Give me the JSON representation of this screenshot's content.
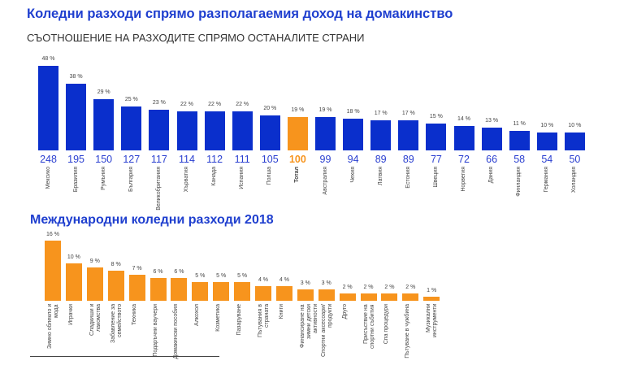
{
  "title": "Коледни разходи спрямо разполагаемия доход на домакинство",
  "subtitle": "СЪОТНОШЕНИЕ НА РАЗХОДИТЕ СПРЯМО ОСТАНАЛИТЕ СТРАНИ",
  "title2": "Международни коледни разходи 2018",
  "colors": {
    "blue": "#0a2fcc",
    "orange": "#f7941d",
    "title": "#1f3fcf"
  },
  "chart_data": [
    {
      "type": "bar",
      "title": "Коледни разходи спрямо разполагаемия доход на домакинство",
      "unit": "%",
      "categories": [
        "Мексико",
        "Бразилия",
        "Румъния",
        "България",
        "Великобритания",
        "Хърватия",
        "Канада",
        "Испания",
        "Полша",
        "Тотал",
        "Австралия",
        "Чехия",
        "Латвия",
        "Естония",
        "Швеция",
        "Норвегия",
        "Дания",
        "Финландия",
        "Германия",
        "Холандия"
      ],
      "values": [
        48,
        38,
        29,
        25,
        23,
        22,
        22,
        22,
        20,
        19,
        19,
        18,
        17,
        17,
        15,
        14,
        13,
        11,
        10,
        10
      ],
      "index": [
        248,
        195,
        150,
        127,
        117,
        114,
        112,
        111,
        105,
        100,
        99,
        94,
        89,
        89,
        77,
        72,
        66,
        58,
        54,
        50
      ],
      "highlight": "Тотал"
    },
    {
      "type": "bar",
      "title": "Международни коледни разходи 2018",
      "unit": "%",
      "categories": [
        "Зимно облекло и мода",
        "Играчки",
        "Сладкиши и лакомства",
        "Забавление за семейството",
        "Техника",
        "Подаръчни ваучери",
        "Домакински пособия",
        "Алкохол",
        "Козметика",
        "Пазаруване",
        "Пътувания в страната",
        "Книги",
        "Финансиране на зимни детски активности",
        "Спортни аксесоари/ продукти",
        "Друго",
        "Присъствие на спортни събития",
        "Спа процедури",
        "Пътуване в чужбина",
        "Музикални инструменти"
      ],
      "values": [
        16,
        10,
        9,
        8,
        7,
        6,
        6,
        5,
        5,
        5,
        4,
        4,
        3,
        3,
        2,
        2,
        2,
        2,
        1
      ]
    }
  ]
}
